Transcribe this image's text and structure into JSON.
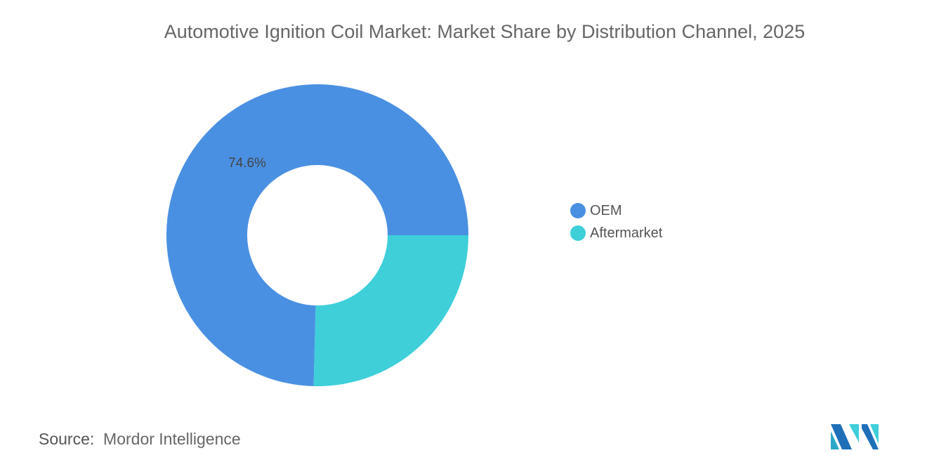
{
  "chart_data": {
    "type": "pie",
    "variant": "donut",
    "title": "Automotive Ignition Coil Market: Market Share by Distribution Channel, 2025",
    "categories": [
      "OEM",
      "Aftermarket"
    ],
    "values": [
      74.6,
      25.4
    ],
    "data_labels": [
      "74.6%",
      ""
    ],
    "colors": [
      "#4A90E2",
      "#3ECFD9"
    ],
    "legend_position": "right"
  },
  "source": {
    "label": "Source:",
    "value": "Mordor Intelligence"
  },
  "logo": {
    "text": "Mordor Intelligence"
  }
}
